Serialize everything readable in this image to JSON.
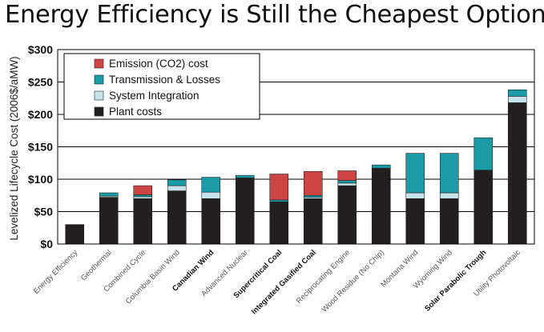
{
  "title": "Energy Efficiency is Still the Cheapest Option",
  "colors": {
    "emission": "#cc4444",
    "transmission": "#1a9ba6",
    "integration": "#c6e2ea",
    "plant": "#231f20"
  },
  "chart_data": {
    "type": "bar",
    "stacked": true,
    "title": "Energy Efficiency is Still the Cheapest Option",
    "ylabel": "Levelized Lifecycle Cost (2006$/aMW)",
    "xlabel": "",
    "ylim": [
      0,
      300
    ],
    "yticks": [
      "$0",
      "$50",
      "$100",
      "$150",
      "$200",
      "$250",
      "$300"
    ],
    "grid": true,
    "legend_position": "top-left",
    "categories": [
      "Energy Efficiency",
      "Geothermal",
      "Combined Cycle",
      "Columbia Basin Wind",
      "Canadian Wind",
      "Advanced Nuclear",
      "Supercritical Coal",
      "Integrated Gasified Coal",
      "Reciprocating Engine",
      "Wood Residue (No Chip)",
      "Montana Wind",
      "Wyoming Wind",
      "Solar Parabolic Trough",
      "Utility Photovoltaic"
    ],
    "bold_categories": [
      "Canadian Wind",
      "Supercritical Coal",
      "Integrated Gasified Coal",
      "Solar Parabolic Trough"
    ],
    "series": [
      {
        "name": "Plant costs",
        "color": "#231f20",
        "values": [
          30,
          72,
          70,
          82,
          70,
          102,
          65,
          70,
          90,
          117,
          70,
          70,
          114,
          218
        ]
      },
      {
        "name": "System Integration",
        "color": "#c6e2ea",
        "values": [
          0,
          2,
          3,
          8,
          10,
          0,
          0,
          2,
          4,
          0,
          9,
          9,
          0,
          10
        ]
      },
      {
        "name": "Transmission & Losses",
        "color": "#1a9ba6",
        "values": [
          0,
          5,
          3,
          9,
          23,
          4,
          3,
          3,
          4,
          5,
          61,
          61,
          50,
          10
        ]
      },
      {
        "name": "Emission (CO2) cost",
        "color": "#cc4444",
        "values": [
          0,
          0,
          14,
          0,
          0,
          0,
          40,
          37,
          15,
          0,
          0,
          0,
          0,
          0
        ]
      }
    ],
    "legend_order": [
      "Emission (CO2) cost",
      "Transmission & Losses",
      "System Integration",
      "Plant costs"
    ]
  }
}
